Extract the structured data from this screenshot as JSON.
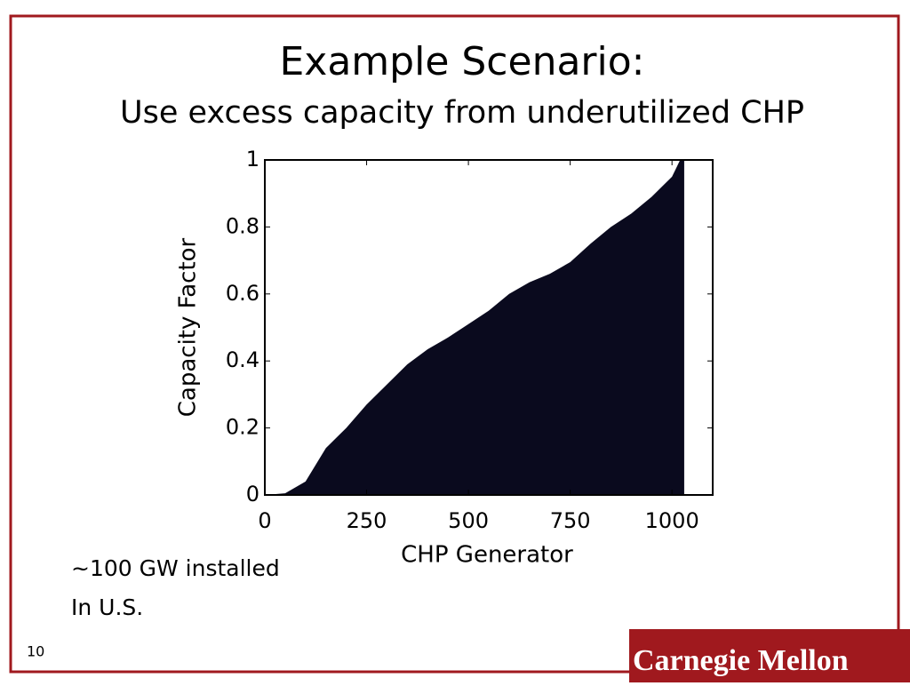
{
  "slide": {
    "title": "Example Scenario:",
    "subtitle": "Use excess capacity from underutilized CHP",
    "note": [
      "~100 GW installed",
      "In U.S."
    ],
    "page_number": "10",
    "logo": "Carnegie Mellon"
  },
  "chart_data": {
    "type": "area",
    "x_label": "CHP Generator",
    "y_label": "Capacity Factor",
    "x": [
      0,
      50,
      100,
      150,
      200,
      250,
      300,
      350,
      400,
      450,
      500,
      550,
      600,
      650,
      700,
      750,
      800,
      850,
      900,
      950,
      1000,
      1020,
      1030
    ],
    "values": [
      0,
      0.005,
      0.04,
      0.14,
      0.2,
      0.27,
      0.33,
      0.39,
      0.435,
      0.47,
      0.51,
      0.55,
      0.6,
      0.635,
      0.66,
      0.695,
      0.75,
      0.8,
      0.84,
      0.89,
      0.95,
      1,
      1
    ],
    "color": "#0a0a1e",
    "xlim": [
      0,
      1100
    ],
    "xticks": [
      0,
      250,
      500,
      750,
      1000
    ],
    "ylim": [
      0,
      1
    ],
    "yticks": [
      0,
      0.2,
      0.4,
      0.6,
      0.8,
      1
    ]
  }
}
